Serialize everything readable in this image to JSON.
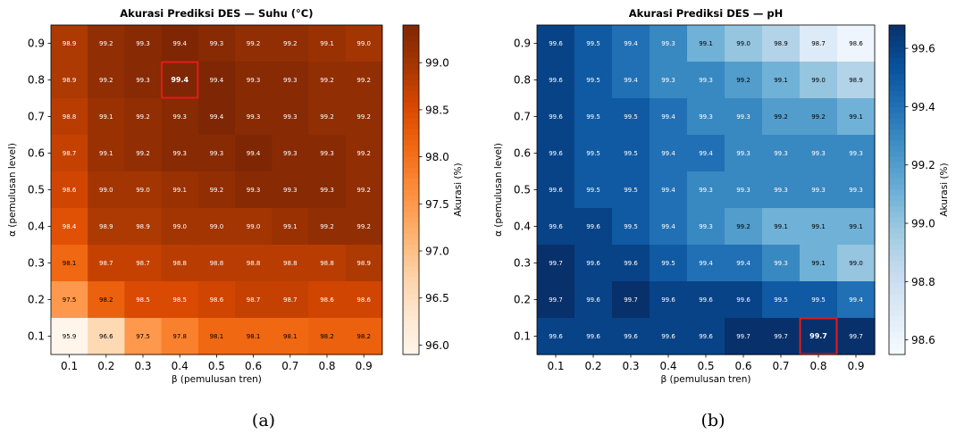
{
  "chart_data": [
    {
      "type": "heatmap",
      "title": "Akurasi Prediksi DES — Suhu (°C)",
      "xlabel": "β (pemulusan tren)",
      "ylabel": "α (pemulusan level)",
      "colorbar_label": "Akurasi (%)",
      "colormap": "Oranges",
      "x": [
        "0.1",
        "0.2",
        "0.3",
        "0.4",
        "0.5",
        "0.6",
        "0.7",
        "0.8",
        "0.9"
      ],
      "y": [
        "0.9",
        "0.8",
        "0.7",
        "0.6",
        "0.5",
        "0.4",
        "0.3",
        "0.2",
        "0.1"
      ],
      "values": [
        [
          98.9,
          99.2,
          99.3,
          99.4,
          99.3,
          99.2,
          99.2,
          99.1,
          99.0
        ],
        [
          98.9,
          99.2,
          99.3,
          99.4,
          99.4,
          99.3,
          99.3,
          99.2,
          99.2
        ],
        [
          98.8,
          99.1,
          99.2,
          99.3,
          99.4,
          99.3,
          99.3,
          99.2,
          99.2
        ],
        [
          98.7,
          99.1,
          99.2,
          99.3,
          99.3,
          99.4,
          99.3,
          99.3,
          99.2
        ],
        [
          98.6,
          99.0,
          99.0,
          99.1,
          99.2,
          99.3,
          99.3,
          99.3,
          99.2
        ],
        [
          98.4,
          98.9,
          98.9,
          99.0,
          99.0,
          99.0,
          99.1,
          99.2,
          99.2
        ],
        [
          98.1,
          98.7,
          98.7,
          98.8,
          98.8,
          98.8,
          98.8,
          98.8,
          98.9
        ],
        [
          97.5,
          98.2,
          98.5,
          98.5,
          98.6,
          98.7,
          98.7,
          98.6,
          98.6
        ],
        [
          95.9,
          96.6,
          97.5,
          97.8,
          98.1,
          98.1,
          98.1,
          98.2,
          98.2
        ]
      ],
      "vmin": 95.9,
      "vmax": 99.4,
      "colorbar_ticks": [
        "96.0",
        "96.5",
        "97.0",
        "97.5",
        "98.0",
        "98.5",
        "99.0"
      ],
      "highlight": {
        "x": "0.4",
        "y": "0.8",
        "color": "#e31a1c"
      },
      "caption": "(a)"
    },
    {
      "type": "heatmap",
      "title": "Akurasi Prediksi DES — pH",
      "xlabel": "β (pemulusan tren)",
      "ylabel": "α (pemulusan level)",
      "colorbar_label": "Akurasi (%)",
      "colormap": "Blues",
      "x": [
        "0.1",
        "0.2",
        "0.3",
        "0.4",
        "0.5",
        "0.6",
        "0.7",
        "0.8",
        "0.9"
      ],
      "y": [
        "0.9",
        "0.8",
        "0.7",
        "0.6",
        "0.5",
        "0.4",
        "0.3",
        "0.2",
        "0.1"
      ],
      "values": [
        [
          99.6,
          99.5,
          99.4,
          99.3,
          99.1,
          99.0,
          98.9,
          98.7,
          98.6
        ],
        [
          99.6,
          99.5,
          99.4,
          99.3,
          99.3,
          99.2,
          99.1,
          99.0,
          98.9
        ],
        [
          99.6,
          99.5,
          99.5,
          99.4,
          99.3,
          99.3,
          99.2,
          99.2,
          99.1
        ],
        [
          99.6,
          99.5,
          99.5,
          99.4,
          99.4,
          99.3,
          99.3,
          99.3,
          99.3
        ],
        [
          99.6,
          99.5,
          99.5,
          99.4,
          99.3,
          99.3,
          99.3,
          99.3,
          99.3
        ],
        [
          99.6,
          99.6,
          99.5,
          99.4,
          99.3,
          99.2,
          99.1,
          99.1,
          99.1
        ],
        [
          99.7,
          99.6,
          99.6,
          99.5,
          99.4,
          99.4,
          99.3,
          99.1,
          99.0
        ],
        [
          99.7,
          99.6,
          99.7,
          99.6,
          99.6,
          99.6,
          99.5,
          99.5,
          99.4
        ],
        [
          99.6,
          99.6,
          99.6,
          99.6,
          99.6,
          99.7,
          99.7,
          99.7,
          99.7
        ]
      ],
      "vmin": 98.55,
      "vmax": 99.68,
      "colorbar_ticks": [
        "98.6",
        "98.8",
        "99.0",
        "99.2",
        "99.4",
        "99.6"
      ],
      "highlight": {
        "x": "0.8",
        "y": "0.1",
        "color": "#e31a1c"
      },
      "caption": "(b)"
    }
  ]
}
